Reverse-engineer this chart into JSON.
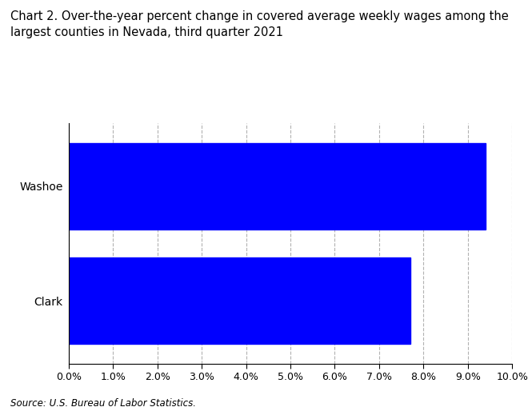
{
  "title": "Chart 2. Over-the-year percent change in covered average weekly wages among the\nlargest counties in Nevada, third quarter 2021",
  "categories": [
    "Clark",
    "Washoe"
  ],
  "values": [
    0.077,
    0.094
  ],
  "bar_color": "#0000ff",
  "xlim": [
    0.0,
    0.1
  ],
  "xticks": [
    0.0,
    0.01,
    0.02,
    0.03,
    0.04,
    0.05,
    0.06,
    0.07,
    0.08,
    0.09,
    0.1
  ],
  "source": "Source: U.S. Bureau of Labor Statistics.",
  "background_color": "#ffffff",
  "grid_color": "#aaaaaa",
  "title_fontsize": 10.5,
  "tick_fontsize": 9,
  "source_fontsize": 8.5
}
